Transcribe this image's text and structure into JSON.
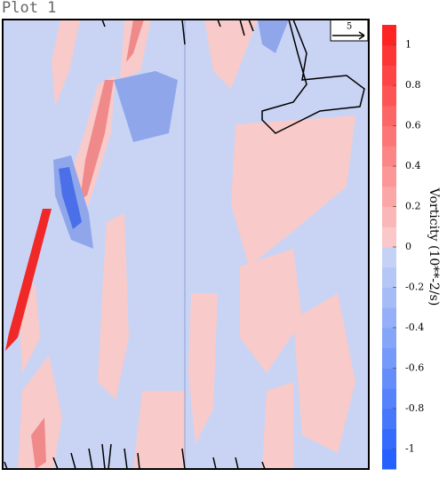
{
  "chart_data": {
    "type": "contour",
    "title": "Plot 1",
    "colorbar_label": "Vorticity (10**-2/s)",
    "clim": [
      -1.1,
      1.1
    ],
    "cticks": [
      1,
      0.8,
      0.6,
      0.4,
      0.2,
      0,
      -0.2,
      -0.4,
      -0.6,
      -0.8,
      -1
    ],
    "colormap": {
      "min": "#1e5bff",
      "neg0": "#cdd8f5",
      "pos0": "#fad0d0",
      "max": "#ff1c1c"
    },
    "vector_reference": "5"
  }
}
